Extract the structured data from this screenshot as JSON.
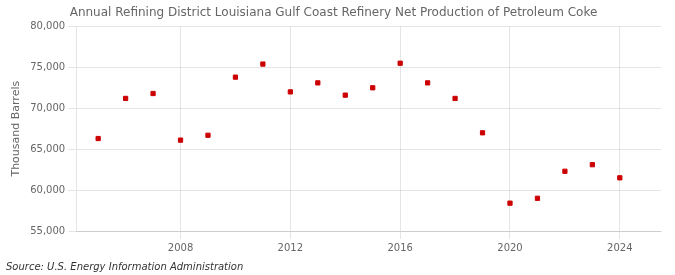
{
  "chart_data": {
    "type": "scatter",
    "title": "Annual Refining District Louisiana Gulf Coast Refinery Net Production of Petroleum Coke",
    "ylabel": "Thousand Barrels",
    "annotations": [
      "Source: U.S. Energy Information Administration"
    ],
    "x": [
      2005,
      2006,
      2007,
      2008,
      2009,
      2010,
      2011,
      2012,
      2013,
      2014,
      2015,
      2016,
      2017,
      2018,
      2019,
      2020,
      2021,
      2022,
      2023,
      2024
    ],
    "values": [
      66300,
      71200,
      71800,
      66100,
      66700,
      73800,
      75400,
      72000,
      73100,
      71600,
      72500,
      75500,
      73100,
      71200,
      67000,
      58400,
      59000,
      62300,
      63100,
      61500
    ],
    "color": "#cc0000",
    "marker": "square",
    "xlim": [
      2004.2,
      2025.5
    ],
    "xticks": [
      2008,
      2012,
      2016,
      2020,
      2024
    ],
    "ylim": [
      55000,
      80000
    ],
    "yticks": [
      {
        "value": 55000,
        "label": "55,000"
      },
      {
        "value": 60000,
        "label": "60,000"
      },
      {
        "value": 65000,
        "label": "65,000"
      },
      {
        "value": 70000,
        "label": "70,000"
      },
      {
        "value": 75000,
        "label": "75,000"
      },
      {
        "value": 80000,
        "label": "80,000"
      }
    ],
    "grid": true
  }
}
